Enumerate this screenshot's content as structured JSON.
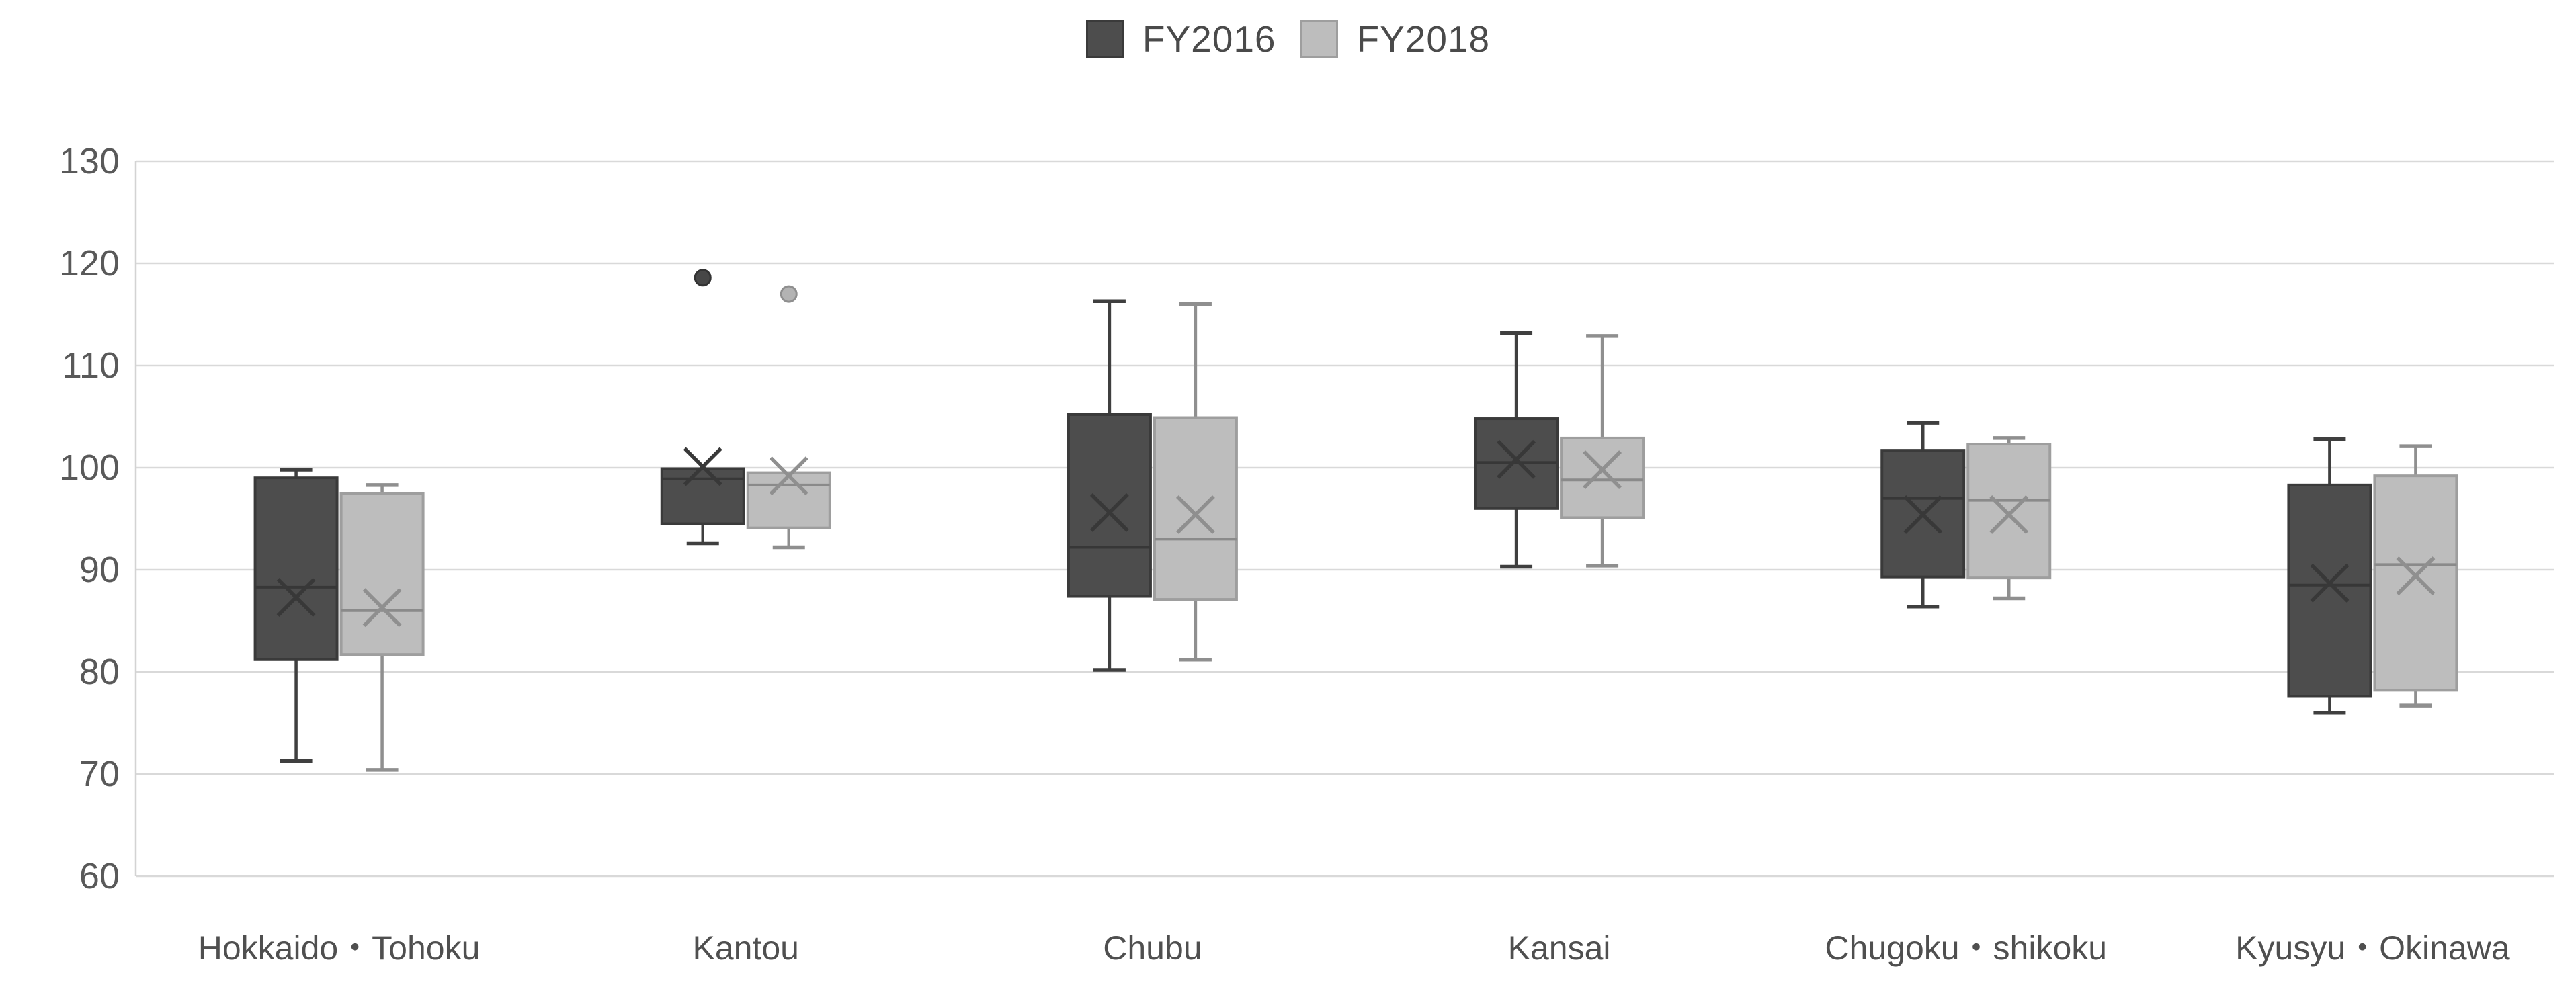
{
  "legend": {
    "items": [
      {
        "label": "FY2016"
      },
      {
        "label": "FY2018"
      }
    ]
  },
  "axis_colors": {
    "grid_color": "#d9d9d9",
    "axis_line_color": "#d3d3d3",
    "tick_text_color": "#595959",
    "category_text_color": "#4f4f4f"
  },
  "chart_data": {
    "type": "boxplot",
    "title": "",
    "grid": true,
    "legend_position": "top-center",
    "y_axis": {
      "min": 60,
      "max": 130,
      "step": 10
    },
    "categories": [
      "Hokkaido・Tohoku",
      "Kantou",
      "Chubu",
      "Kansai",
      "Chugoku・shikoku",
      "Kyusyu・Okinawa"
    ],
    "series": [
      {
        "name": "FY2016",
        "colors": {
          "fill": "#4d4d4d",
          "border": "#3a3a3a",
          "whisker": "#3f3f3f",
          "median": "#373737",
          "mean": "#383838",
          "outlier_fill": "#474747",
          "outlier_border": "#333333"
        },
        "boxes": [
          {
            "category": "Hokkaido・Tohoku",
            "min": 71.3,
            "q1": 81.2,
            "median": 88.3,
            "mean": 87.3,
            "q3": 99.0,
            "max": 99.8,
            "outliers": []
          },
          {
            "category": "Kantou",
            "min": 92.6,
            "q1": 94.5,
            "median": 98.9,
            "mean": 100.1,
            "q3": 99.9,
            "max": 99.9,
            "outliers": [
              118.6
            ]
          },
          {
            "category": "Chubu",
            "min": 80.2,
            "q1": 87.4,
            "median": 92.2,
            "mean": 95.6,
            "q3": 105.2,
            "max": 116.3,
            "outliers": []
          },
          {
            "category": "Kansai",
            "min": 90.3,
            "q1": 96.0,
            "median": 100.5,
            "mean": 100.8,
            "q3": 104.8,
            "max": 113.2,
            "outliers": []
          },
          {
            "category": "Chugoku・shikoku",
            "min": 86.4,
            "q1": 89.3,
            "median": 97.0,
            "mean": 95.4,
            "q3": 101.7,
            "max": 104.4,
            "outliers": []
          },
          {
            "category": "Kyusyu・Okinawa",
            "min": 76.0,
            "q1": 77.6,
            "median": 88.5,
            "mean": 88.7,
            "q3": 98.3,
            "max": 102.8,
            "outliers": []
          }
        ]
      },
      {
        "name": "FY2018",
        "colors": {
          "fill": "#bdbdbd",
          "border": "#9e9e9e",
          "whisker": "#8f8f8f",
          "median": "#8a8a8a",
          "mean": "#8f8f8f",
          "outlier_fill": "#b3b3b3",
          "outlier_border": "#8f8f8f"
        },
        "boxes": [
          {
            "category": "Hokkaido・Tohoku",
            "min": 70.4,
            "q1": 81.7,
            "median": 86.0,
            "mean": 86.3,
            "q3": 97.5,
            "max": 98.3,
            "outliers": []
          },
          {
            "category": "Kantou",
            "min": 92.2,
            "q1": 94.1,
            "median": 98.3,
            "mean": 99.2,
            "q3": 99.5,
            "max": 99.5,
            "outliers": [
              117.0
            ]
          },
          {
            "category": "Chubu",
            "min": 81.2,
            "q1": 87.1,
            "median": 93.0,
            "mean": 95.4,
            "q3": 104.9,
            "max": 116.0,
            "outliers": []
          },
          {
            "category": "Kansai",
            "min": 90.4,
            "q1": 95.1,
            "median": 98.8,
            "mean": 99.8,
            "q3": 102.9,
            "max": 112.9,
            "outliers": []
          },
          {
            "category": "Chugoku・shikoku",
            "min": 87.2,
            "q1": 89.2,
            "median": 96.8,
            "mean": 95.4,
            "q3": 102.3,
            "max": 102.9,
            "outliers": []
          },
          {
            "category": "Kyusyu・Okinawa",
            "min": 76.7,
            "q1": 78.2,
            "median": 90.5,
            "mean": 89.4,
            "q3": 99.2,
            "max": 102.1,
            "outliers": []
          }
        ]
      }
    ]
  }
}
